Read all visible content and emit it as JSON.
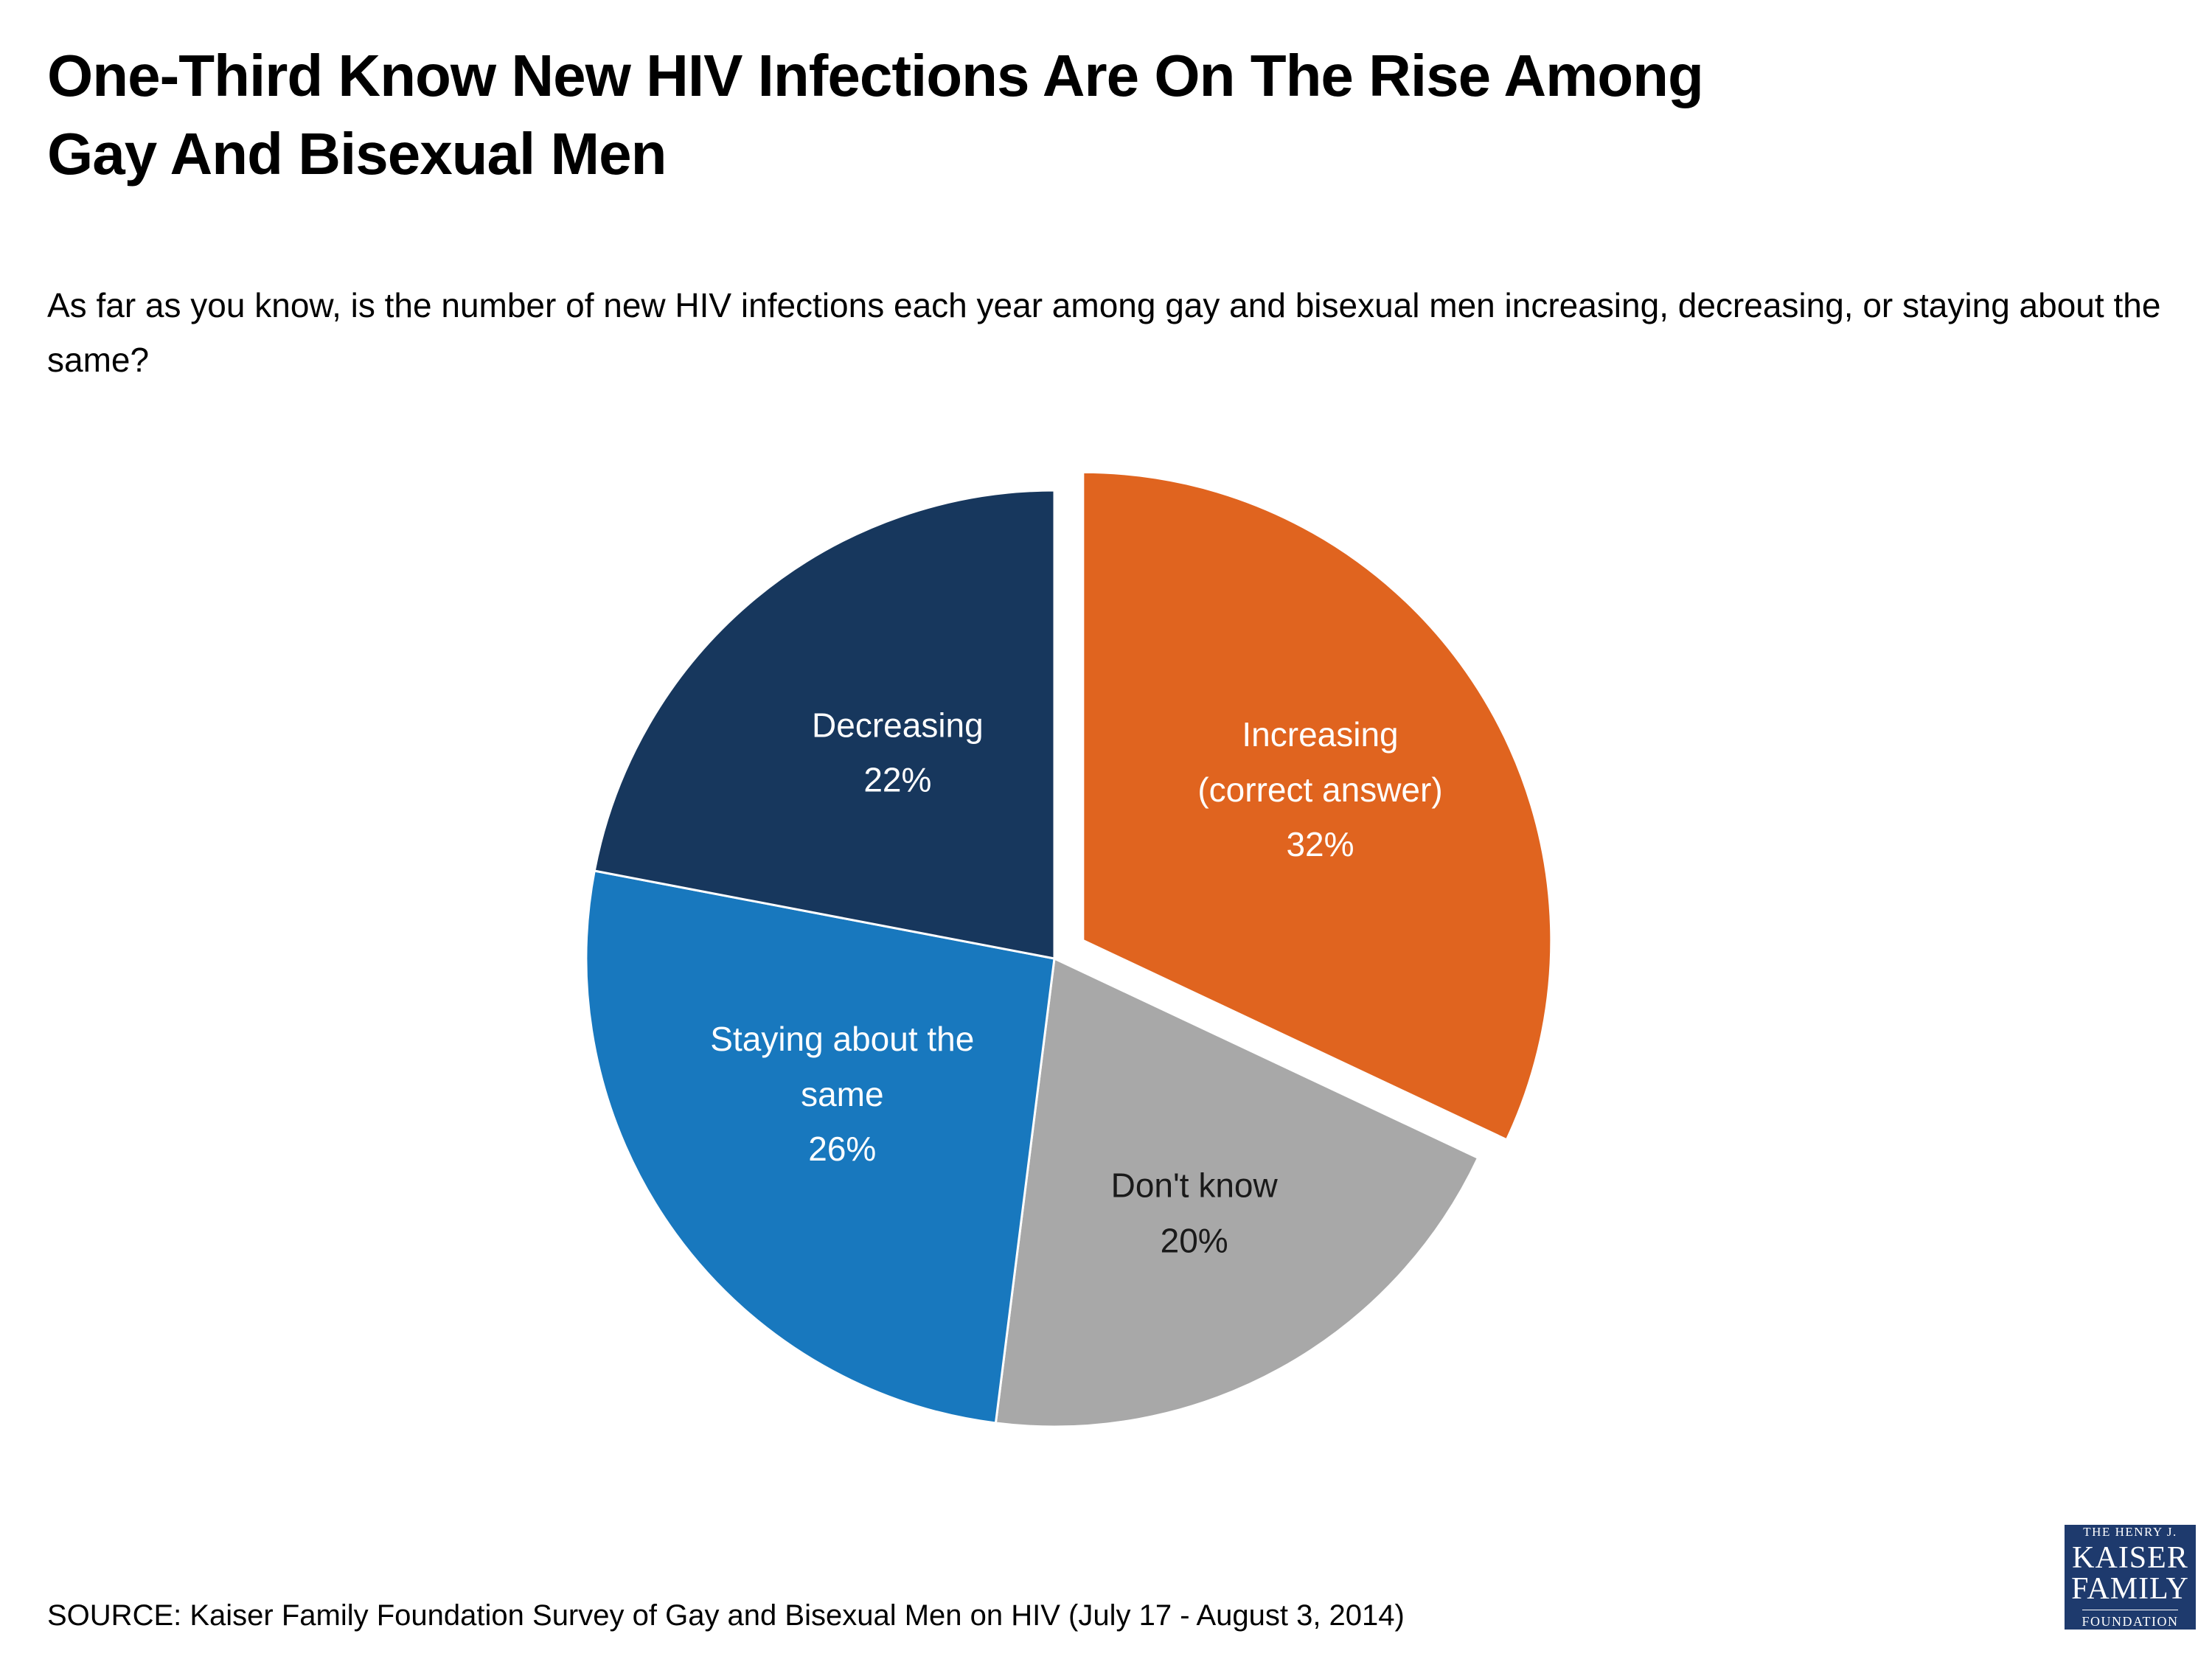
{
  "page": {
    "title": "One-Third Know New HIV Infections Are On The Rise Among Gay And Bisexual Men",
    "title_lines": [
      "One-Third Know New HIV Infections Are On The Rise Among",
      "Gay And Bisexual Men"
    ],
    "subtitle": "As far as you know, is the number of new HIV infections each year among gay and bisexual men increasing, decreasing, or staying about the same?",
    "source": "SOURCE: Kaiser Family Foundation Survey of Gay and Bisexual Men on HIV (July 17 - August 3, 2014)"
  },
  "logo": {
    "line1": "The Henry J.",
    "line2": "Kaiser",
    "line3": "Family",
    "line4": "Foundation",
    "bg_color": "#1E3A6D",
    "text_color": "#FFFFFF"
  },
  "chart_data": {
    "type": "pie",
    "title": "One-Third Know New HIV Infections Are On The Rise Among Gay And Bisexual Men",
    "question": "As far as you know, is the number of new HIV infections each year among gay and bisexual men increasing, decreasing, or staying about the same?",
    "start_angle": "12 o'clock",
    "direction": "clockwise",
    "legend_position": "none (labels inside slices)",
    "slices": [
      {
        "label": "Increasing (correct answer)",
        "value": 32,
        "pct_label": "32%",
        "color": "#E0641F",
        "text_color": "#FFFFFF",
        "exploded": true,
        "label_lines": [
          "Increasing",
          "(correct answer)",
          "32%"
        ]
      },
      {
        "label": "Don't know",
        "value": 20,
        "pct_label": "20%",
        "color": "#A8A8A8",
        "text_color": "#1A1A1A",
        "exploded": false,
        "label_lines": [
          "Don't know",
          "20%"
        ]
      },
      {
        "label": "Staying about the same",
        "value": 26,
        "pct_label": "26%",
        "color": "#1878BE",
        "text_color": "#FFFFFF",
        "exploded": false,
        "label_lines": [
          "Staying about the",
          "same",
          "26%"
        ]
      },
      {
        "label": "Decreasing",
        "value": 22,
        "pct_label": "22%",
        "color": "#17375D",
        "text_color": "#FFFFFF",
        "exploded": false,
        "label_lines": [
          "Decreasing",
          "22%"
        ]
      }
    ]
  }
}
